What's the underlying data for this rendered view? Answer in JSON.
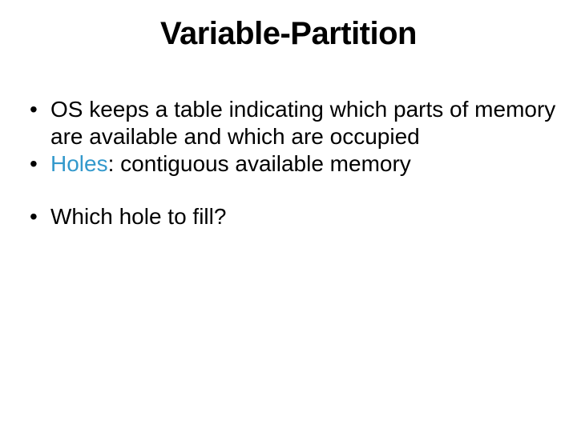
{
  "slide": {
    "title": "Variable-Partition",
    "title_fontsize": 40,
    "title_color": "#000000",
    "body_fontsize": 28,
    "text_color": "#000000",
    "highlight_color": "#3399cc",
    "background_color": "#ffffff",
    "bullets": {
      "b1": "OS keeps a table indicating which parts of memory are available and which are occupied",
      "b2_hl": "Holes",
      "b2_rest": ": contiguous available memory",
      "b3": "Which hole to fill?"
    }
  }
}
